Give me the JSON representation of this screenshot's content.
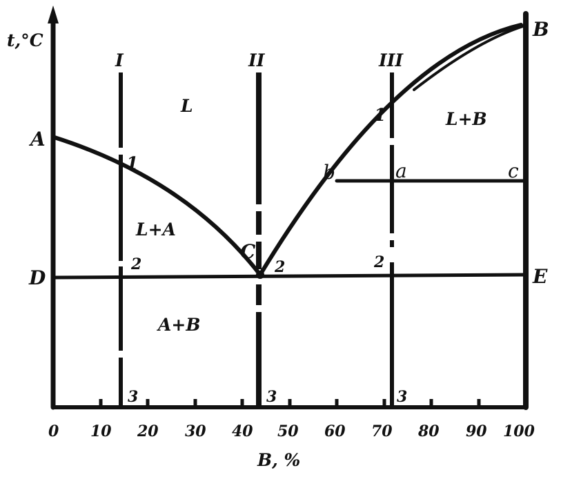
{
  "axes": {
    "y_label": "t,°C",
    "x_label": "B, %",
    "x_ticks": [
      "0",
      "10",
      "20",
      "30",
      "40",
      "50",
      "60",
      "70",
      "80",
      "90",
      "100"
    ]
  },
  "points": {
    "A": "A",
    "B": "B",
    "C": "C",
    "D": "D",
    "E": "E",
    "a": "a",
    "b": "b",
    "c": "c"
  },
  "alloys": [
    {
      "id": "I",
      "label": "I",
      "composition": 14,
      "point1": "1",
      "point2": "2",
      "point3": "3"
    },
    {
      "id": "II",
      "label": "II",
      "composition": 44,
      "point2": "2",
      "point3": "3"
    },
    {
      "id": "III",
      "label": "III",
      "composition": 73,
      "point1": "1",
      "point2": "2",
      "point3": "3"
    }
  ],
  "regions": {
    "liquid": "L",
    "liquid_plus_a": "L+A",
    "liquid_plus_b": "L+B",
    "solid_a_plus_b": "A+B"
  }
}
